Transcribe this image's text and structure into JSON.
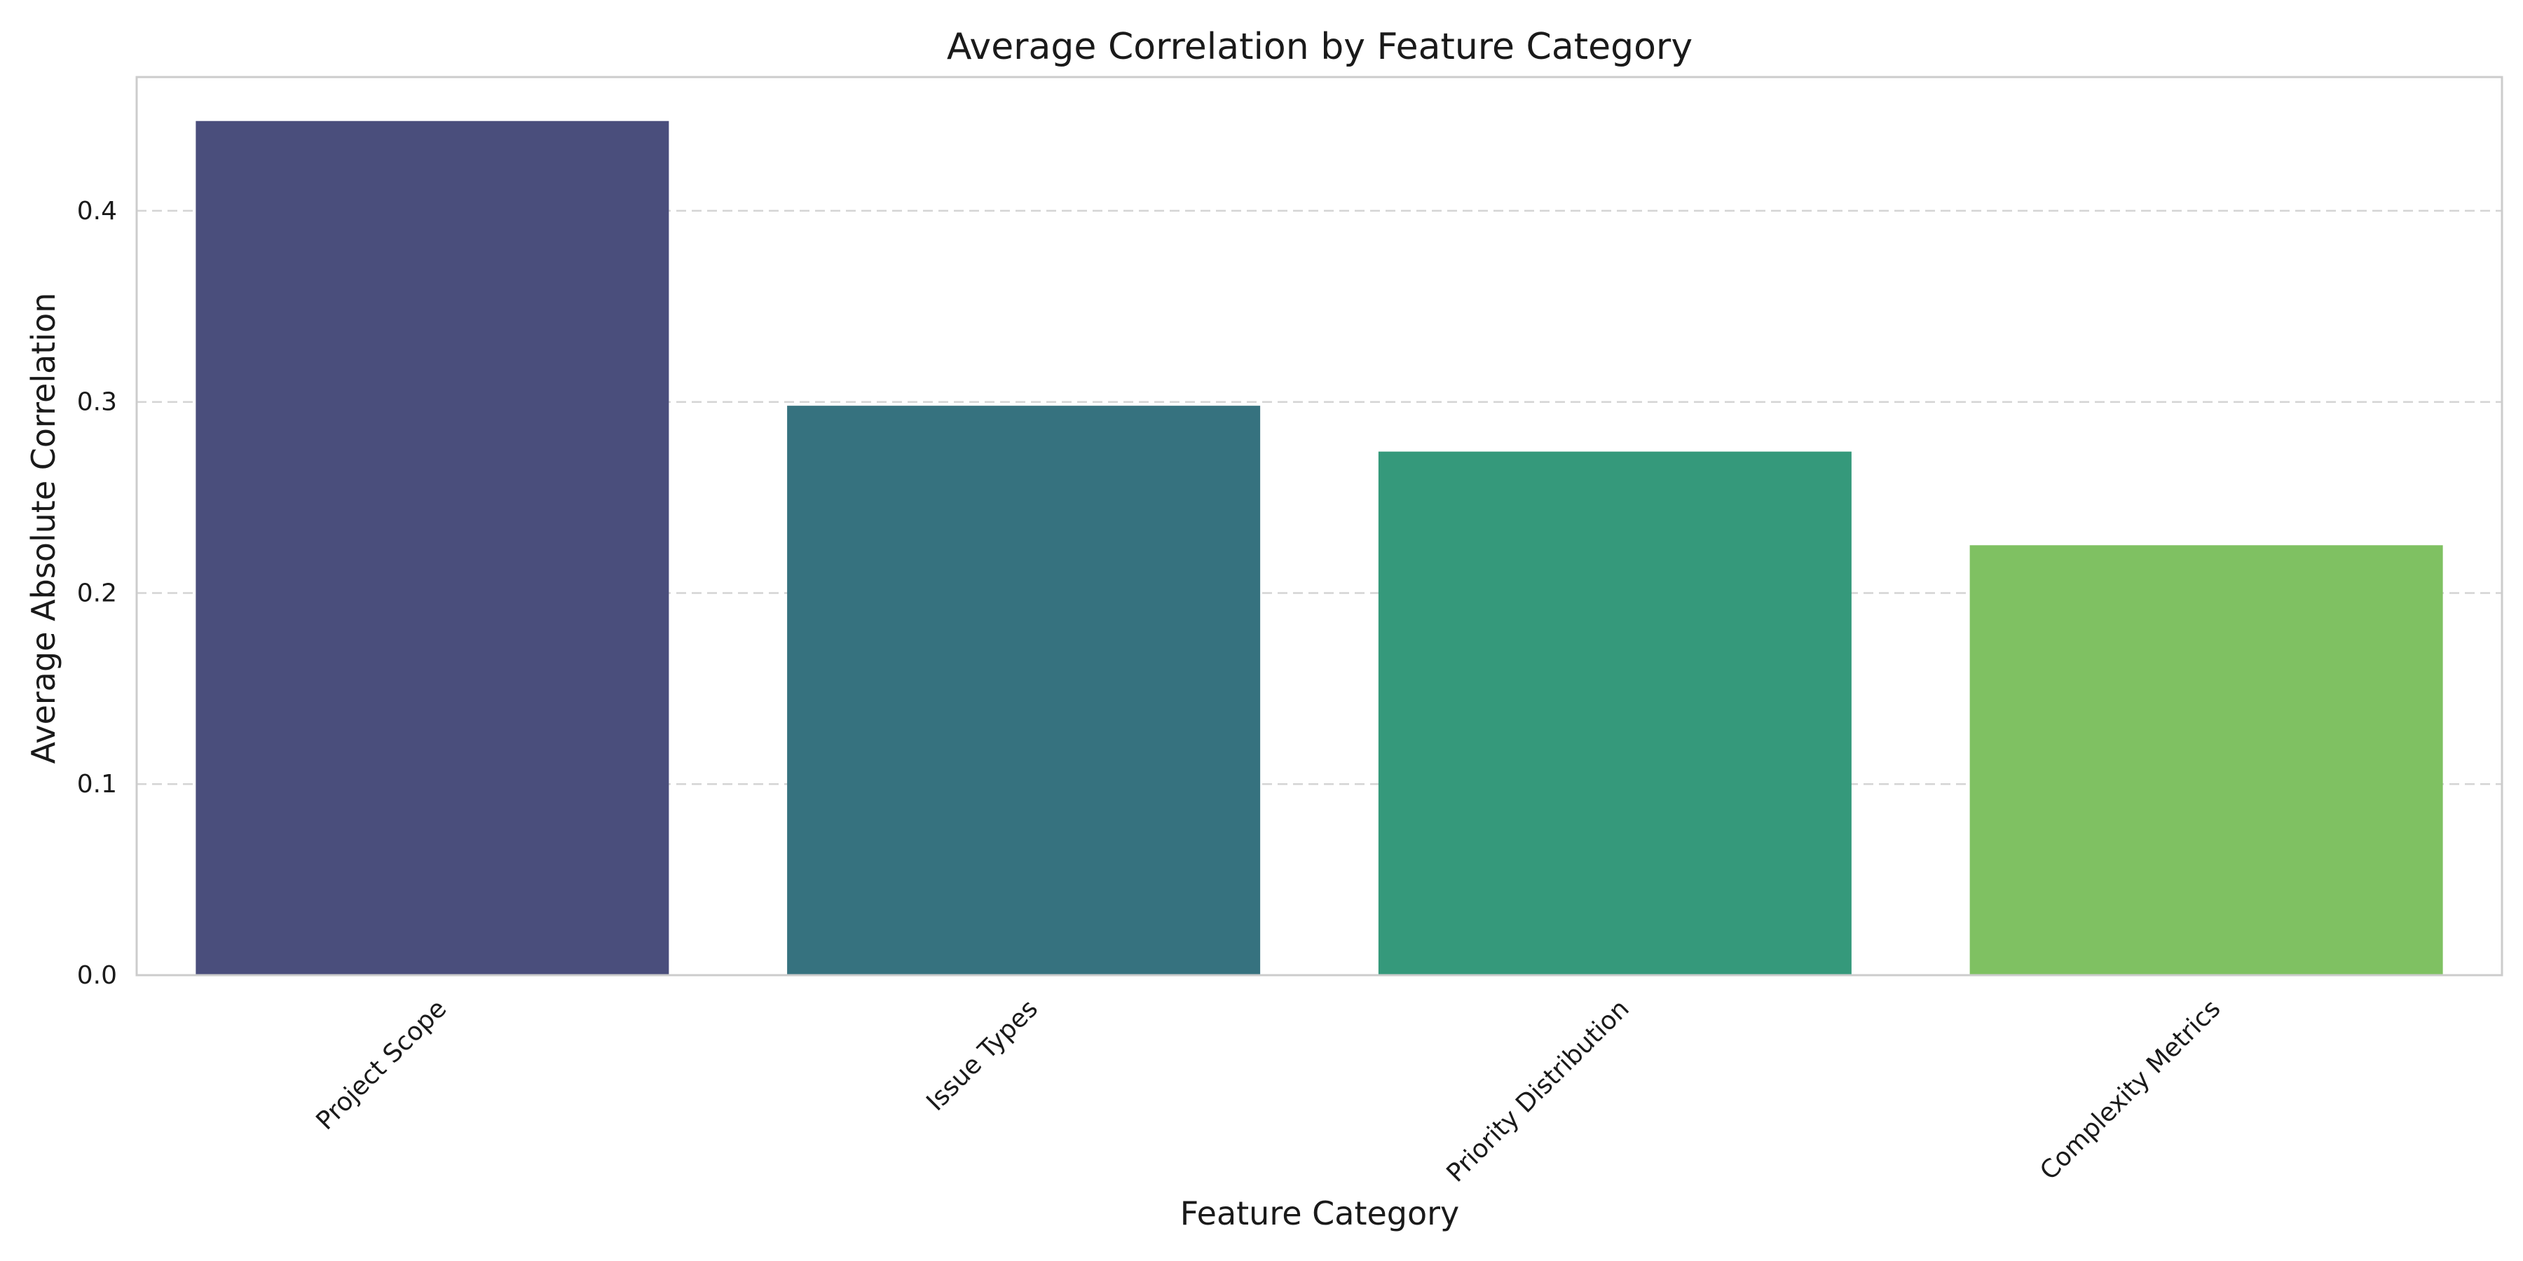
{
  "chart_data": {
    "type": "bar",
    "title": "Average Correlation by Feature Category",
    "xlabel": "Feature Category",
    "ylabel": "Average Absolute Correlation",
    "categories": [
      "Project Scope",
      "Issue Types",
      "Priority Distribution",
      "Complexity Metrics"
    ],
    "values": [
      0.447,
      0.298,
      0.274,
      0.225
    ],
    "colors": [
      "#4a4e7c",
      "#36727f",
      "#35997b",
      "#7fc162"
    ],
    "ylim": [
      0,
      0.47
    ],
    "yticks": [
      0.0,
      0.1,
      0.2,
      0.3,
      0.4
    ],
    "ytick_labels": [
      "0.0",
      "0.1",
      "0.2",
      "0.3",
      "0.4"
    ],
    "grid": "y-dashed",
    "legend": "none"
  }
}
